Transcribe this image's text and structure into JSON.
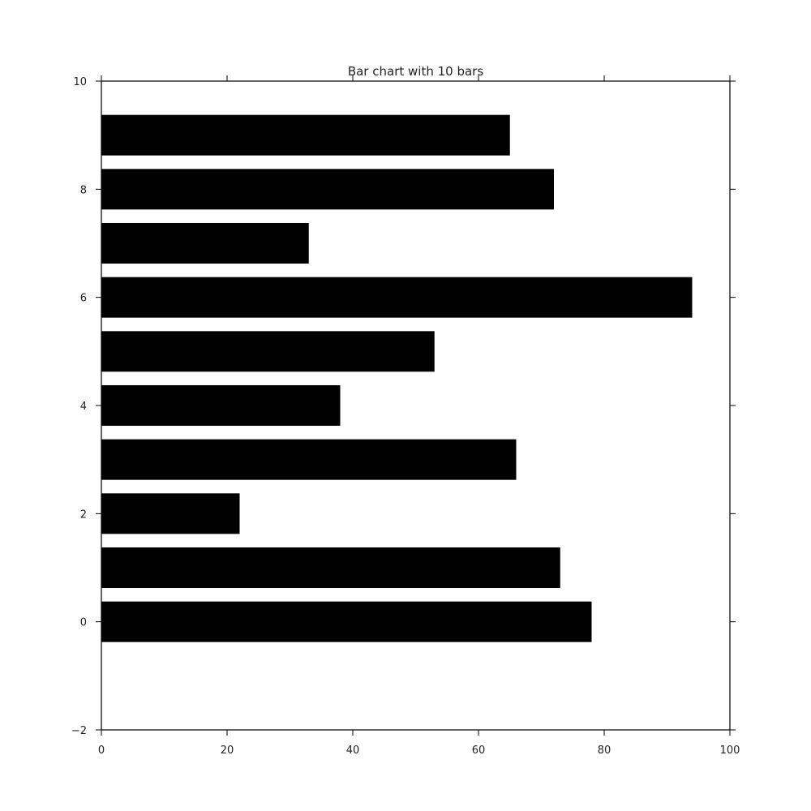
{
  "chart_data": {
    "type": "bar",
    "orientation": "horizontal",
    "title": "Bar chart with 10 bars",
    "xlabel": "",
    "ylabel": "",
    "categories": [
      0,
      1,
      2,
      3,
      4,
      5,
      6,
      7,
      8,
      9
    ],
    "values": [
      78,
      73,
      22,
      66,
      38,
      53,
      94,
      33,
      72,
      65
    ],
    "bar_height": 0.75,
    "bar_color": "#000000",
    "xlim": [
      0,
      100
    ],
    "ylim": [
      -2,
      10
    ],
    "x_ticks": [
      0,
      20,
      40,
      60,
      80,
      100
    ],
    "x_tick_labels": [
      "0",
      "20",
      "40",
      "60",
      "80",
      "100"
    ],
    "y_ticks": [
      -2,
      0,
      2,
      4,
      6,
      8,
      10
    ],
    "y_tick_labels": [
      "−2",
      "0",
      "2",
      "4",
      "6",
      "8",
      "10"
    ],
    "grid": false,
    "legend": "none"
  }
}
